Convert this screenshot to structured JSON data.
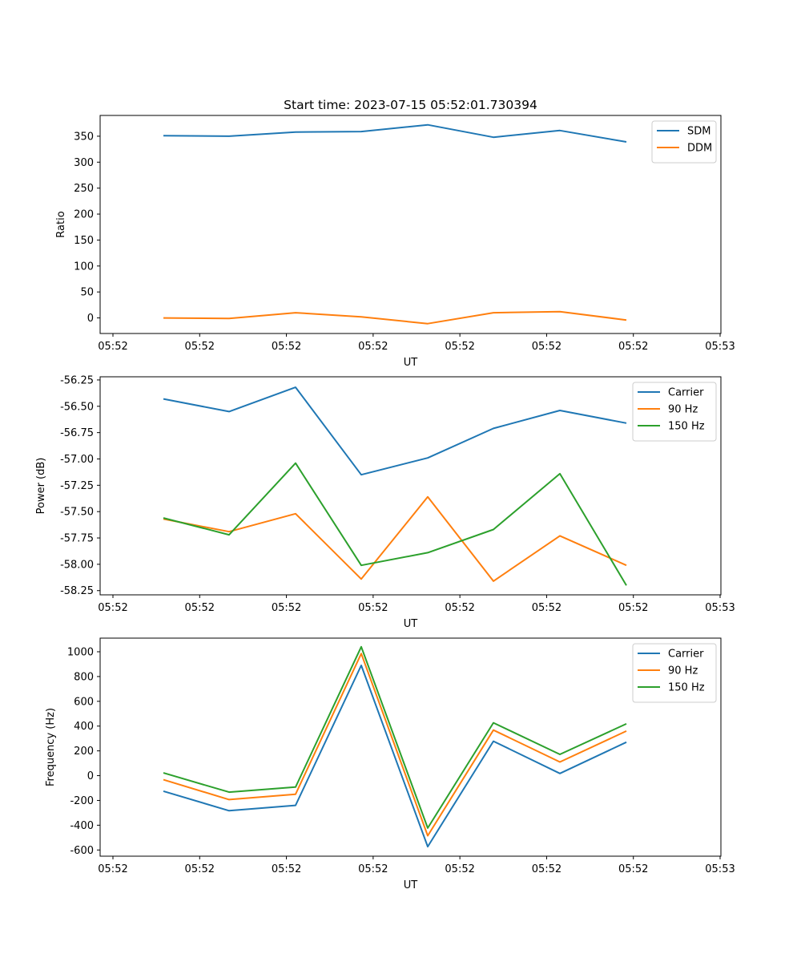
{
  "chart_data": [
    {
      "type": "line",
      "title": "Start time: 2023-07-15 05:52:01.730394",
      "xlabel": "UT",
      "ylabel": "Ratio",
      "x_ticks": [
        "05:52",
        "05:52",
        "05:52",
        "05:52",
        "05:52",
        "05:52",
        "05:52",
        "05:53"
      ],
      "ylim": [
        -30,
        390
      ],
      "y_ticks": [
        "0",
        "50",
        "100",
        "150",
        "200",
        "250",
        "300",
        "350"
      ],
      "y_tick_values": [
        0,
        50,
        100,
        150,
        200,
        250,
        300,
        350
      ],
      "legend": "top-right",
      "series": [
        {
          "name": "SDM",
          "color": "#1f77b4",
          "values": [
            351,
            350,
            358,
            359,
            372,
            348,
            361,
            339
          ]
        },
        {
          "name": "DDM",
          "color": "#ff7f0e",
          "values": [
            0,
            -1,
            10,
            2,
            -11,
            10,
            12,
            -4
          ]
        }
      ]
    },
    {
      "type": "line",
      "title": "",
      "xlabel": "UT",
      "ylabel": "Power (dB)",
      "x_ticks": [
        "05:52",
        "05:52",
        "05:52",
        "05:52",
        "05:52",
        "05:52",
        "05:52",
        "05:53"
      ],
      "ylim": [
        -58.29,
        -56.22
      ],
      "y_ticks": [
        "-56.25",
        "-56.50",
        "-56.75",
        "-57.00",
        "-57.25",
        "-57.50",
        "-57.75",
        "-58.00",
        "-58.25"
      ],
      "y_tick_values": [
        -56.25,
        -56.5,
        -56.75,
        -57.0,
        -57.25,
        -57.5,
        -57.75,
        -58.0,
        -58.25
      ],
      "legend": "top-right",
      "series": [
        {
          "name": "Carrier",
          "color": "#1f77b4",
          "values": [
            -56.43,
            -56.55,
            -56.32,
            -57.15,
            -56.99,
            -56.71,
            -56.54,
            -56.66
          ]
        },
        {
          "name": "90 Hz",
          "color": "#ff7f0e",
          "values": [
            -57.57,
            -57.69,
            -57.52,
            -58.14,
            -57.36,
            -58.16,
            -57.73,
            -58.01
          ]
        },
        {
          "name": "150 Hz",
          "color": "#2ca02c",
          "values": [
            -57.56,
            -57.72,
            -57.04,
            -58.01,
            -57.89,
            -57.67,
            -57.14,
            -58.2
          ]
        }
      ]
    },
    {
      "type": "line",
      "title": "",
      "xlabel": "UT",
      "ylabel": "Frequency (Hz)",
      "x_ticks": [
        "05:52",
        "05:52",
        "05:52",
        "05:52",
        "05:52",
        "05:52",
        "05:52",
        "05:53"
      ],
      "ylim": [
        -650,
        1110
      ],
      "y_ticks": [
        "1000",
        "800",
        "600",
        "400",
        "200",
        "0",
        "-200",
        "-400",
        "-600"
      ],
      "y_tick_values": [
        1000,
        800,
        600,
        400,
        200,
        0,
        -200,
        -400,
        -600
      ],
      "legend": "top-right",
      "series": [
        {
          "name": "Carrier",
          "color": "#1f77b4",
          "values": [
            -125,
            -283,
            -240,
            890,
            -573,
            278,
            18,
            270
          ]
        },
        {
          "name": "90 Hz",
          "color": "#ff7f0e",
          "values": [
            -33,
            -193,
            -150,
            985,
            -485,
            368,
            110,
            360
          ]
        },
        {
          "name": "150 Hz",
          "color": "#2ca02c",
          "values": [
            22,
            -133,
            -92,
            1040,
            -423,
            427,
            172,
            418
          ]
        }
      ]
    }
  ]
}
